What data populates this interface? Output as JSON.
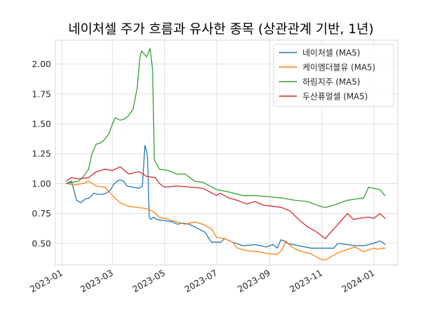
{
  "chart_data": {
    "type": "line",
    "title": "네이처셀 주가 흐름과 유사한 종목 (상관관계 기반, 1년)",
    "xlabel": "",
    "ylabel": "",
    "x_ticks": [
      "2023-01-01",
      "2023-03-01",
      "2023-05-01",
      "2023-07-01",
      "2023-09-01",
      "2023-11-01",
      "2024-01-01"
    ],
    "x_tick_labels": [
      "2023-01",
      "2023-03",
      "2023-05",
      "2023-07",
      "2023-09",
      "2023-11",
      "2024-01"
    ],
    "xlim": [
      "2022-12-24",
      "2024-01-29"
    ],
    "y_ticks": [
      0.5,
      0.75,
      1.0,
      1.25,
      1.5,
      1.75,
      2.0
    ],
    "y_tick_labels": [
      "0.50",
      "0.75",
      "1.00",
      "1.25",
      "1.50",
      "1.75",
      "2.00"
    ],
    "ylim": [
      0.32,
      2.2
    ],
    "grid": true,
    "legend_position": "top-right",
    "series": [
      {
        "name": "네이처셀 (MA5)",
        "color": "#1f77b4",
        "points": [
          [
            "2023-01-06",
            1.0
          ],
          [
            "2023-01-12",
            1.02
          ],
          [
            "2023-01-18",
            0.86
          ],
          [
            "2023-01-23",
            0.84
          ],
          [
            "2023-01-28",
            0.87
          ],
          [
            "2023-02-02",
            0.88
          ],
          [
            "2023-02-07",
            0.92
          ],
          [
            "2023-02-12",
            0.91
          ],
          [
            "2023-02-17",
            0.91
          ],
          [
            "2023-02-22",
            0.92
          ],
          [
            "2023-02-27",
            0.95
          ],
          [
            "2023-03-02",
            0.99
          ],
          [
            "2023-03-06",
            1.02
          ],
          [
            "2023-03-10",
            1.03
          ],
          [
            "2023-03-14",
            1.02
          ],
          [
            "2023-03-18",
            0.98
          ],
          [
            "2023-03-25",
            0.97
          ],
          [
            "2023-04-01",
            0.96
          ],
          [
            "2023-04-05",
            0.98
          ],
          [
            "2023-04-08",
            1.32
          ],
          [
            "2023-04-10",
            1.27
          ],
          [
            "2023-04-11",
            1.22
          ],
          [
            "2023-04-13",
            0.72
          ],
          [
            "2023-04-15",
            0.7
          ],
          [
            "2023-04-18",
            0.72
          ],
          [
            "2023-04-22",
            0.7
          ],
          [
            "2023-05-01",
            0.69
          ],
          [
            "2023-05-10",
            0.68
          ],
          [
            "2023-05-16",
            0.66
          ],
          [
            "2023-05-22",
            0.67
          ],
          [
            "2023-05-30",
            0.66
          ],
          [
            "2023-06-10",
            0.62
          ],
          [
            "2023-06-18",
            0.59
          ],
          [
            "2023-06-21",
            0.55
          ],
          [
            "2023-06-25",
            0.51
          ],
          [
            "2023-07-01",
            0.51
          ],
          [
            "2023-07-06",
            0.51
          ],
          [
            "2023-07-10",
            0.54
          ],
          [
            "2023-07-20",
            0.51
          ],
          [
            "2023-08-01",
            0.48
          ],
          [
            "2023-08-15",
            0.49
          ],
          [
            "2023-08-28",
            0.47
          ],
          [
            "2023-09-05",
            0.49
          ],
          [
            "2023-09-10",
            0.46
          ],
          [
            "2023-09-14",
            0.53
          ],
          [
            "2023-09-18",
            0.52
          ],
          [
            "2023-09-22",
            0.5
          ],
          [
            "2023-10-05",
            0.48
          ],
          [
            "2023-10-20",
            0.46
          ],
          [
            "2023-11-01",
            0.46
          ],
          [
            "2023-11-15",
            0.46
          ],
          [
            "2023-11-20",
            0.5
          ],
          [
            "2023-12-01",
            0.49
          ],
          [
            "2023-12-10",
            0.48
          ],
          [
            "2023-12-20",
            0.48
          ],
          [
            "2024-01-01",
            0.5
          ],
          [
            "2024-01-08",
            0.52
          ],
          [
            "2024-01-11",
            0.51
          ],
          [
            "2024-01-14",
            0.49
          ]
        ]
      },
      {
        "name": "케이엠더블유 (MA5)",
        "color": "#ff7f0e",
        "points": [
          [
            "2023-01-06",
            1.0
          ],
          [
            "2023-01-15",
            0.99
          ],
          [
            "2023-01-25",
            1.0
          ],
          [
            "2023-02-01",
            1.02
          ],
          [
            "2023-02-10",
            0.98
          ],
          [
            "2023-02-20",
            0.97
          ],
          [
            "2023-03-01",
            0.9
          ],
          [
            "2023-03-10",
            0.84
          ],
          [
            "2023-03-20",
            0.81
          ],
          [
            "2023-04-01",
            0.8
          ],
          [
            "2023-04-10",
            0.79
          ],
          [
            "2023-04-17",
            0.77
          ],
          [
            "2023-04-25",
            0.72
          ],
          [
            "2023-05-05",
            0.7
          ],
          [
            "2023-05-15",
            0.68
          ],
          [
            "2023-05-25",
            0.66
          ],
          [
            "2023-06-05",
            0.68
          ],
          [
            "2023-06-15",
            0.66
          ],
          [
            "2023-06-25",
            0.62
          ],
          [
            "2023-07-01",
            0.55
          ],
          [
            "2023-07-10",
            0.54
          ],
          [
            "2023-07-20",
            0.51
          ],
          [
            "2023-07-25",
            0.46
          ],
          [
            "2023-08-05",
            0.44
          ],
          [
            "2023-08-20",
            0.43
          ],
          [
            "2023-09-01",
            0.41
          ],
          [
            "2023-09-10",
            0.41
          ],
          [
            "2023-09-15",
            0.44
          ],
          [
            "2023-09-20",
            0.52
          ],
          [
            "2023-09-24",
            0.49
          ],
          [
            "2023-10-01",
            0.45
          ],
          [
            "2023-10-10",
            0.43
          ],
          [
            "2023-10-20",
            0.41
          ],
          [
            "2023-10-30",
            0.37
          ],
          [
            "2023-11-05",
            0.36
          ],
          [
            "2023-11-12",
            0.39
          ],
          [
            "2023-11-20",
            0.42
          ],
          [
            "2023-12-01",
            0.45
          ],
          [
            "2023-12-10",
            0.47
          ],
          [
            "2023-12-20",
            0.43
          ],
          [
            "2024-01-01",
            0.46
          ],
          [
            "2024-01-06",
            0.45
          ],
          [
            "2024-01-10",
            0.46
          ],
          [
            "2024-01-14",
            0.46
          ]
        ]
      },
      {
        "name": "하림지주 (MA5)",
        "color": "#2ca02c",
        "points": [
          [
            "2023-01-06",
            1.0
          ],
          [
            "2023-01-12",
            1.01
          ],
          [
            "2023-01-20",
            1.02
          ],
          [
            "2023-01-25",
            1.05
          ],
          [
            "2023-02-01",
            1.12
          ],
          [
            "2023-02-05",
            1.25
          ],
          [
            "2023-02-10",
            1.33
          ],
          [
            "2023-02-15",
            1.34
          ],
          [
            "2023-02-20",
            1.37
          ],
          [
            "2023-02-25",
            1.42
          ],
          [
            "2023-03-01",
            1.5
          ],
          [
            "2023-03-04",
            1.55
          ],
          [
            "2023-03-10",
            1.53
          ],
          [
            "2023-03-15",
            1.54
          ],
          [
            "2023-03-20",
            1.57
          ],
          [
            "2023-03-25",
            1.62
          ],
          [
            "2023-03-30",
            1.8
          ],
          [
            "2023-04-02",
            2.05
          ],
          [
            "2023-04-04",
            2.11
          ],
          [
            "2023-04-10",
            2.06
          ],
          [
            "2023-04-14",
            2.13
          ],
          [
            "2023-04-17",
            1.95
          ],
          [
            "2023-04-19",
            1.2
          ],
          [
            "2023-04-25",
            1.12
          ],
          [
            "2023-05-05",
            1.11
          ],
          [
            "2023-05-15",
            1.08
          ],
          [
            "2023-05-25",
            1.08
          ],
          [
            "2023-06-05",
            1.02
          ],
          [
            "2023-06-15",
            1.01
          ],
          [
            "2023-07-01",
            0.95
          ],
          [
            "2023-07-15",
            0.93
          ],
          [
            "2023-08-01",
            0.9
          ],
          [
            "2023-08-15",
            0.9
          ],
          [
            "2023-09-01",
            0.89
          ],
          [
            "2023-09-15",
            0.88
          ],
          [
            "2023-10-01",
            0.86
          ],
          [
            "2023-10-15",
            0.85
          ],
          [
            "2023-10-30",
            0.81
          ],
          [
            "2023-11-05",
            0.8
          ],
          [
            "2023-11-15",
            0.82
          ],
          [
            "2023-12-01",
            0.86
          ],
          [
            "2023-12-10",
            0.87
          ],
          [
            "2023-12-20",
            0.88
          ],
          [
            "2023-12-26",
            0.97
          ],
          [
            "2024-01-01",
            0.96
          ],
          [
            "2024-01-08",
            0.95
          ],
          [
            "2024-01-14",
            0.9
          ]
        ]
      },
      {
        "name": "두산퓨얼셀 (MA5)",
        "color": "#d62728",
        "points": [
          [
            "2023-01-06",
            1.02
          ],
          [
            "2023-01-12",
            1.05
          ],
          [
            "2023-01-20",
            1.04
          ],
          [
            "2023-02-01",
            1.05
          ],
          [
            "2023-02-10",
            1.1
          ],
          [
            "2023-02-20",
            1.12
          ],
          [
            "2023-03-01",
            1.11
          ],
          [
            "2023-03-10",
            1.14
          ],
          [
            "2023-03-20",
            1.08
          ],
          [
            "2023-04-01",
            1.1
          ],
          [
            "2023-04-10",
            1.06
          ],
          [
            "2023-04-20",
            1.05
          ],
          [
            "2023-04-25",
            1.0
          ],
          [
            "2023-05-01",
            0.97
          ],
          [
            "2023-05-15",
            0.98
          ],
          [
            "2023-06-01",
            0.97
          ],
          [
            "2023-06-15",
            0.96
          ],
          [
            "2023-07-01",
            0.9
          ],
          [
            "2023-07-05",
            0.92
          ],
          [
            "2023-07-15",
            0.88
          ],
          [
            "2023-07-25",
            0.86
          ],
          [
            "2023-08-05",
            0.83
          ],
          [
            "2023-08-15",
            0.85
          ],
          [
            "2023-08-25",
            0.82
          ],
          [
            "2023-09-05",
            0.81
          ],
          [
            "2023-09-15",
            0.8
          ],
          [
            "2023-09-25",
            0.77
          ],
          [
            "2023-10-05",
            0.7
          ],
          [
            "2023-10-15",
            0.64
          ],
          [
            "2023-10-25",
            0.6
          ],
          [
            "2023-11-05",
            0.54
          ],
          [
            "2023-11-15",
            0.62
          ],
          [
            "2023-11-25",
            0.7
          ],
          [
            "2023-12-01",
            0.75
          ],
          [
            "2023-12-08",
            0.7
          ],
          [
            "2023-12-15",
            0.71
          ],
          [
            "2023-12-25",
            0.72
          ],
          [
            "2024-01-01",
            0.71
          ],
          [
            "2024-01-08",
            0.75
          ],
          [
            "2024-01-14",
            0.71
          ]
        ]
      }
    ]
  }
}
